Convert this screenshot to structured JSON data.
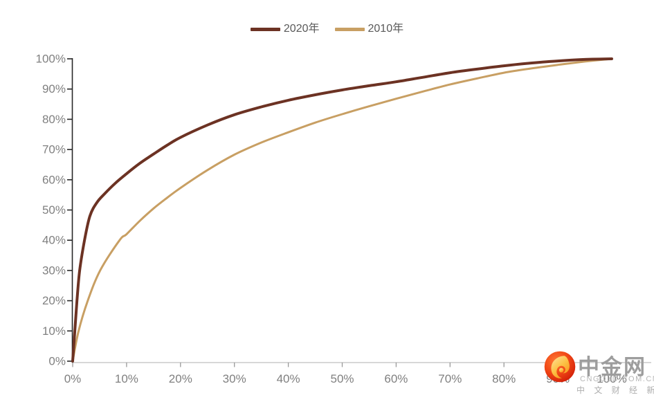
{
  "chart_data": {
    "type": "line",
    "title": "",
    "xlabel": "",
    "ylabel": "",
    "x_axis": {
      "range": [
        0,
        100
      ],
      "ticks": [
        "0%",
        "10%",
        "20%",
        "30%",
        "40%",
        "50%",
        "60%",
        "70%",
        "80%",
        "90%",
        "100%"
      ]
    },
    "y_axis": {
      "range": [
        0,
        100
      ],
      "ticks": [
        "0%",
        "10%",
        "20%",
        "30%",
        "40%",
        "50%",
        "60%",
        "70%",
        "80%",
        "90%",
        "100%"
      ]
    },
    "grid": false,
    "legend_position": "top-center",
    "series": [
      {
        "name": "2020年",
        "color": "#6C3223",
        "stroke_width": 4,
        "points": [
          [
            0,
            0
          ],
          [
            0.4,
            10
          ],
          [
            0.8,
            20
          ],
          [
            1.3,
            30
          ],
          [
            2.2,
            40
          ],
          [
            3.2,
            48
          ],
          [
            4.5,
            52.5
          ],
          [
            6,
            55.5
          ],
          [
            8,
            59
          ],
          [
            10,
            62
          ],
          [
            12.5,
            65.5
          ],
          [
            15,
            68.5
          ],
          [
            17.5,
            71.4
          ],
          [
            20,
            74
          ],
          [
            25,
            78.1
          ],
          [
            30,
            81.5
          ],
          [
            35,
            84.1
          ],
          [
            40,
            86.3
          ],
          [
            45,
            88.1
          ],
          [
            50,
            89.7
          ],
          [
            55,
            91.1
          ],
          [
            60,
            92.4
          ],
          [
            65,
            93.9
          ],
          [
            70,
            95.4
          ],
          [
            75,
            96.6
          ],
          [
            80,
            97.7
          ],
          [
            85,
            98.6
          ],
          [
            90,
            99.3
          ],
          [
            95,
            99.8
          ],
          [
            100,
            100
          ]
        ]
      },
      {
        "name": "2010年",
        "color": "#C89F63",
        "stroke_width": 3,
        "points": [
          [
            0,
            0
          ],
          [
            1.1,
            10
          ],
          [
            2.8,
            20
          ],
          [
            5.1,
            30
          ],
          [
            8.7,
            40
          ],
          [
            10,
            42
          ],
          [
            12.5,
            46.5
          ],
          [
            15,
            50.5
          ],
          [
            17.5,
            54
          ],
          [
            20,
            57.3
          ],
          [
            25,
            63.2
          ],
          [
            30,
            68.3
          ],
          [
            35,
            72.3
          ],
          [
            40,
            75.7
          ],
          [
            45,
            78.9
          ],
          [
            50,
            81.7
          ],
          [
            55,
            84.3
          ],
          [
            60,
            86.8
          ],
          [
            65,
            89.2
          ],
          [
            70,
            91.5
          ],
          [
            75,
            93.5
          ],
          [
            80,
            95.4
          ],
          [
            85,
            96.8
          ],
          [
            90,
            98
          ],
          [
            95,
            99.1
          ],
          [
            100,
            100
          ]
        ]
      }
    ]
  },
  "style": {
    "y_axis_line_color": "#262626",
    "x_axis_line_color": "#bfbfbf",
    "x_tick_color": "#999999",
    "tick_label_color": "#808080",
    "legend_text_color": "#595959"
  },
  "watermark": {
    "title": "中金网",
    "domain": "CNGOLD.COM.CN",
    "tagline": "中 文 财 经 新 媒 体",
    "logo_outer_color": "#e02408",
    "logo_inner_color": "#ff6a2b",
    "logo_flame_color": "#f7a21b",
    "logo_flame_light": "#ffe3a0"
  }
}
